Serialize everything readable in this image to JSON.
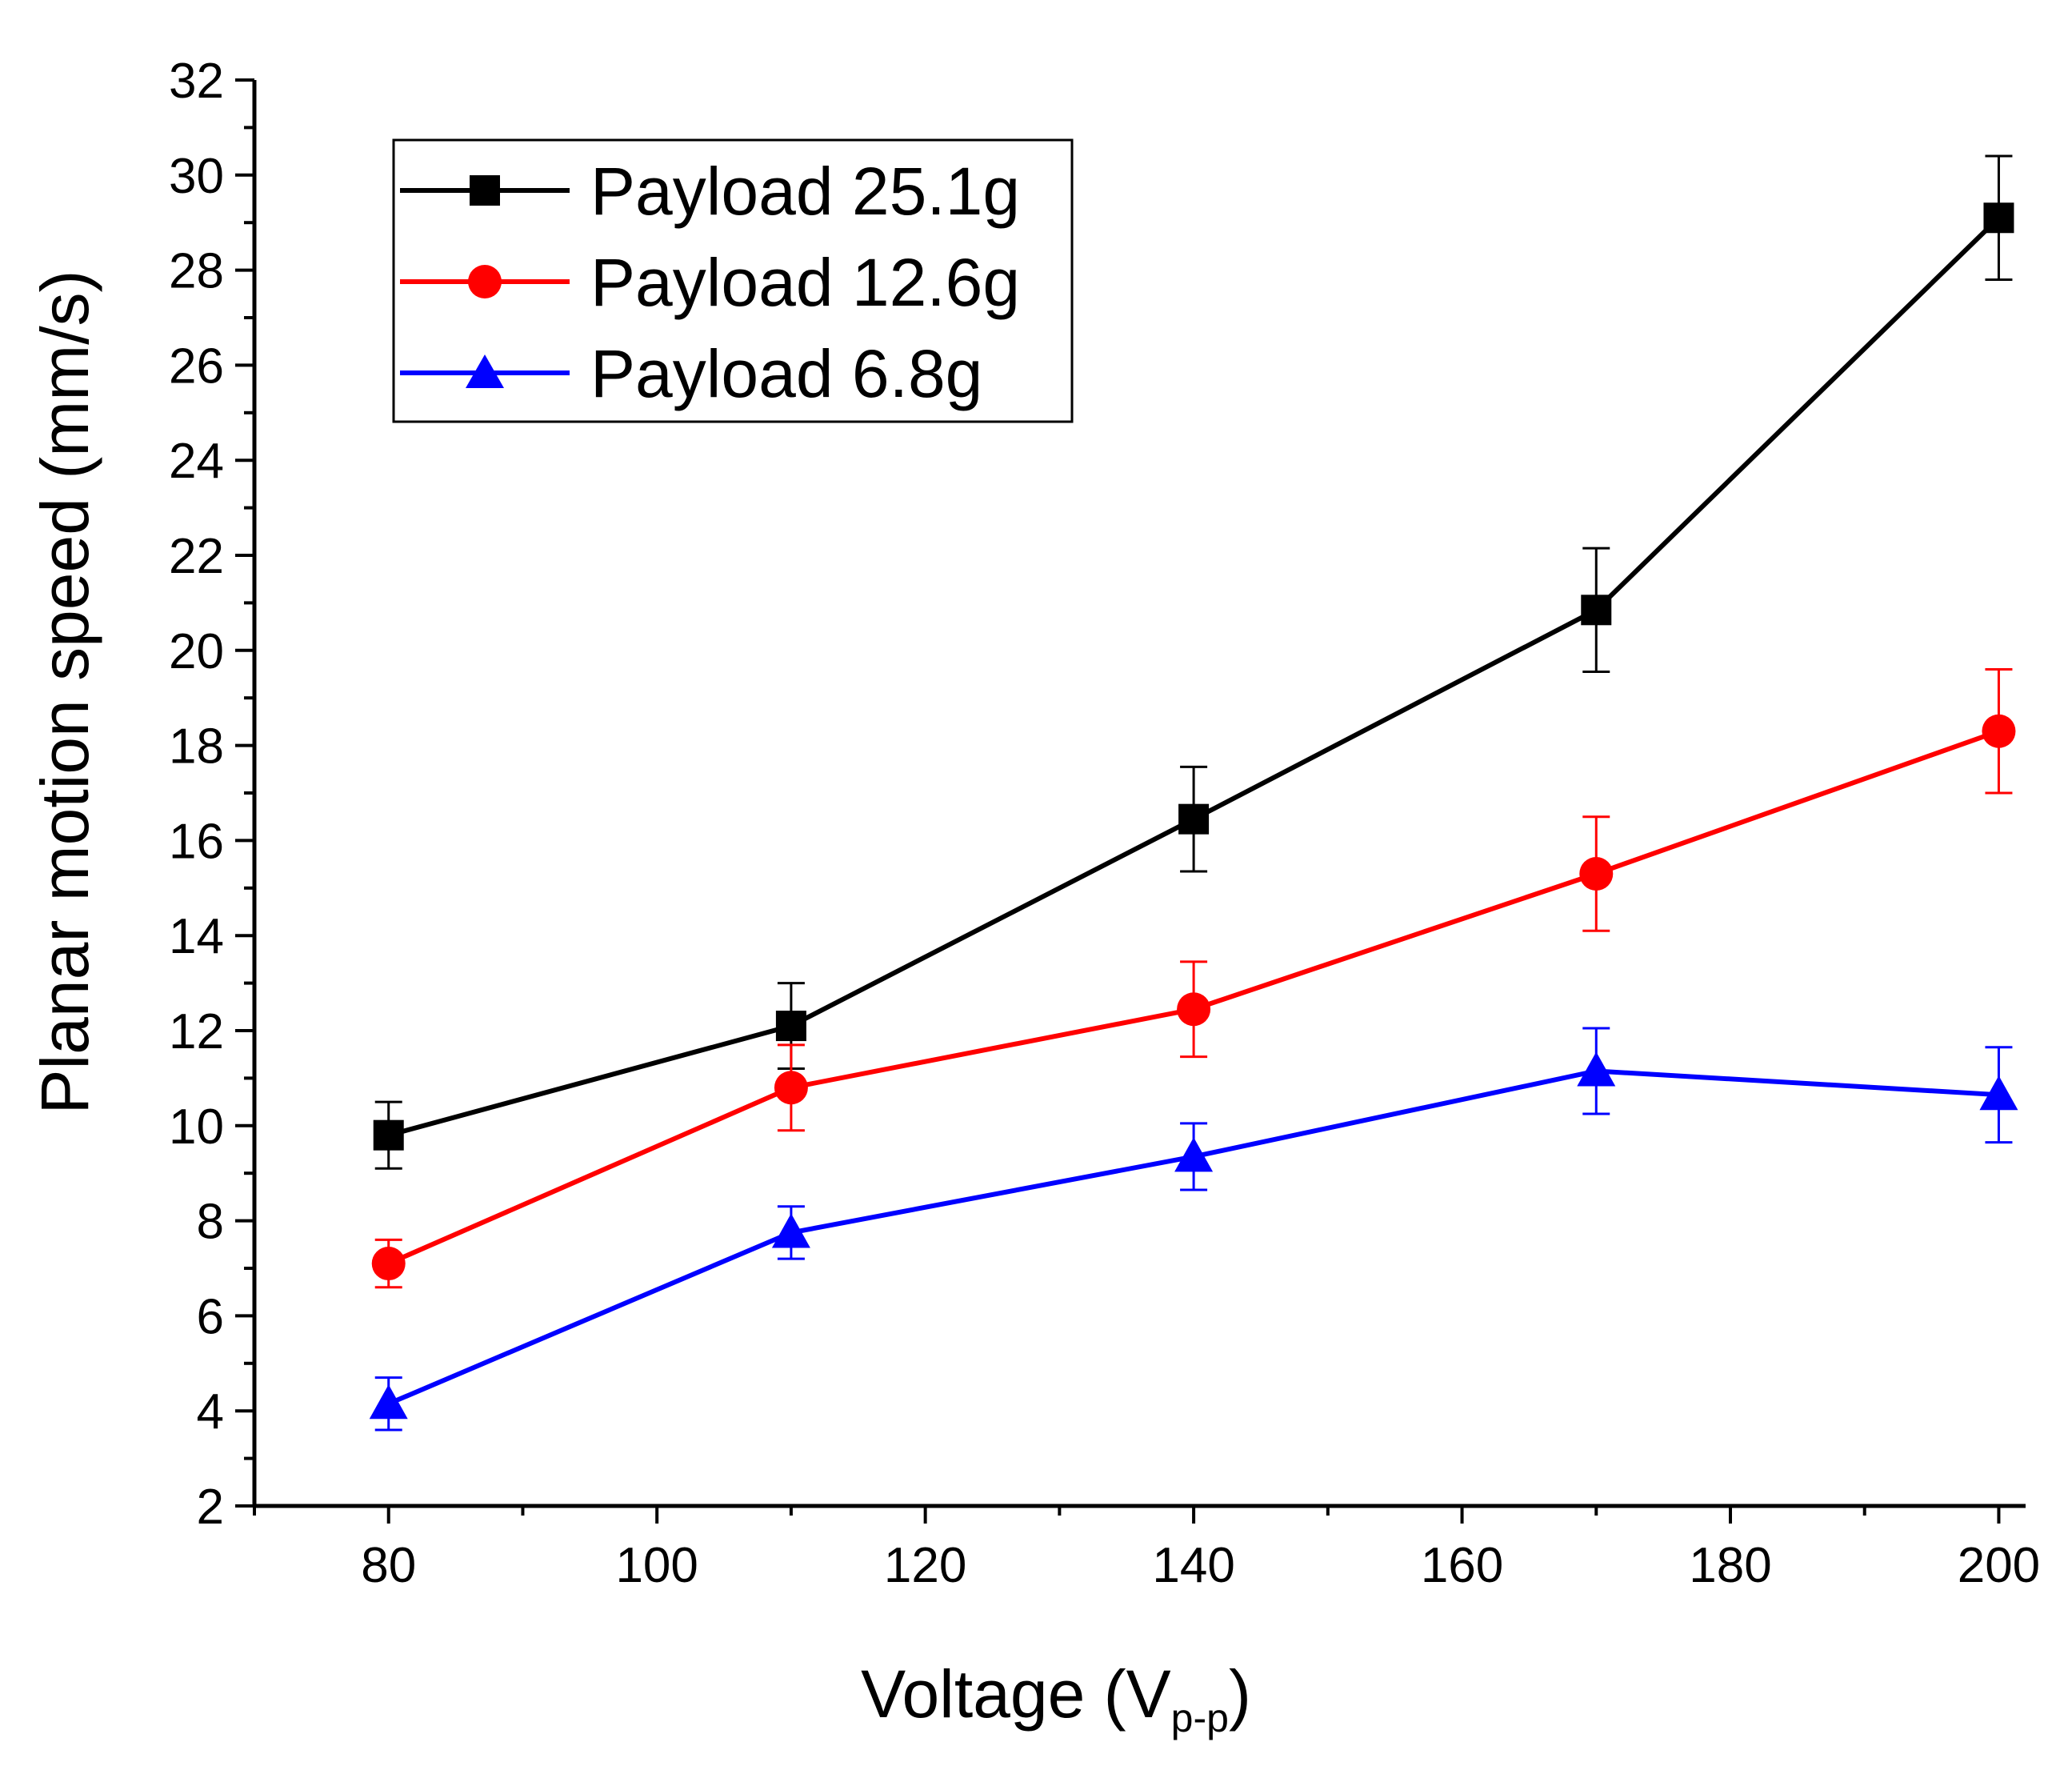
{
  "chart_data": {
    "type": "line",
    "title": "",
    "xlabel": "Voltage (V",
    "xlabel_sub": "p-p",
    "xlabel_close": ")",
    "ylabel": "Planar motion speed (mm/s)",
    "xlim": [
      70,
      202
    ],
    "ylim": [
      2,
      32
    ],
    "x_ticks": [
      80,
      100,
      120,
      140,
      160,
      180,
      200
    ],
    "y_ticks": [
      2,
      4,
      6,
      8,
      10,
      12,
      14,
      16,
      18,
      20,
      22,
      24,
      26,
      28,
      30,
      32
    ],
    "grid": false,
    "legend_position": "top-left",
    "x": [
      80,
      110,
      140,
      170,
      200
    ],
    "series": [
      {
        "name": "Payload 25.1g",
        "color": "#000000",
        "marker": "square",
        "values": [
          9.8,
          12.1,
          16.45,
          20.85,
          29.1
        ],
        "errors": [
          0.7,
          0.9,
          1.1,
          1.3,
          1.3
        ]
      },
      {
        "name": "Payload 12.6g",
        "color": "#ff0000",
        "marker": "circle",
        "values": [
          7.1,
          10.8,
          12.45,
          15.3,
          18.3
        ],
        "errors": [
          0.5,
          0.9,
          1.0,
          1.2,
          1.3
        ]
      },
      {
        "name": "Payload 6.8g",
        "color": "#0000ff",
        "marker": "triangle",
        "values": [
          4.15,
          7.75,
          9.35,
          11.15,
          10.65
        ],
        "errors": [
          0.55,
          0.55,
          0.7,
          0.9,
          1.0
        ]
      }
    ]
  }
}
